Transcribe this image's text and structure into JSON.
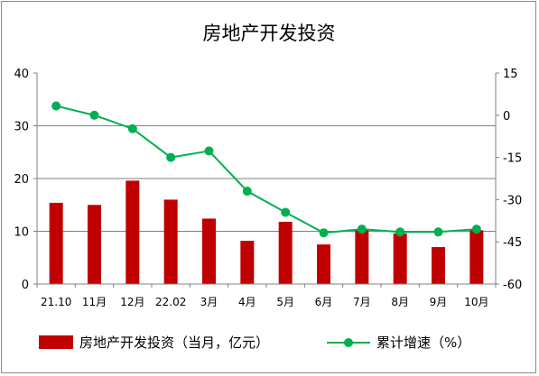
{
  "chart_data": {
    "type": "bar+line",
    "title": "房地产开发投资",
    "categories": [
      "21.10",
      "11月",
      "12月",
      "22.02",
      "3月",
      "4月",
      "5月",
      "6月",
      "7月",
      "8月",
      "9月",
      "10月"
    ],
    "series": [
      {
        "name": "房地产开发投资（当月，亿元）",
        "type": "bar",
        "axis": "left",
        "color": "#c00000",
        "values": [
          15.4,
          15.0,
          19.6,
          16.0,
          12.4,
          8.2,
          11.8,
          7.5,
          10.2,
          9.6,
          7.0,
          10.2
        ]
      },
      {
        "name": "累计增速（%）",
        "type": "line",
        "axis": "right",
        "color": "#00b050",
        "values": [
          3.3,
          0.0,
          -4.8,
          -15.0,
          -12.7,
          -27.0,
          -34.5,
          -41.8,
          -40.5,
          -41.5,
          -41.5,
          -40.5
        ]
      }
    ],
    "y_left": {
      "min": 0,
      "max": 40,
      "ticks": [
        "0",
        "10",
        "20",
        "30",
        "40"
      ]
    },
    "y_right": {
      "min": -60,
      "max": 15,
      "ticks": [
        "15",
        "0",
        "-15",
        "-30",
        "-45",
        "-60"
      ]
    },
    "gridlines": [
      10,
      20,
      30
    ],
    "legend_position": "bottom"
  }
}
